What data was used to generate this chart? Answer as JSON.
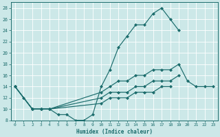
{
  "xlabel": "Humidex (Indice chaleur)",
  "bg_color": "#cce8e8",
  "grid_color": "#ffffff",
  "line_color": "#1a6b6b",
  "xlim": [
    -0.5,
    23.5
  ],
  "ylim": [
    8,
    29
  ],
  "xticks": [
    0,
    1,
    2,
    3,
    4,
    5,
    6,
    7,
    8,
    9,
    10,
    11,
    12,
    13,
    14,
    15,
    16,
    17,
    18,
    19,
    20,
    21,
    22,
    23
  ],
  "yticks": [
    8,
    10,
    12,
    14,
    16,
    18,
    20,
    22,
    24,
    26,
    28
  ],
  "lines": [
    {
      "x": [
        0,
        1,
        2,
        3,
        4,
        5,
        6,
        7,
        8,
        9,
        10,
        11,
        12,
        13,
        14,
        15,
        16,
        17,
        18,
        19
      ],
      "y": [
        14,
        12,
        10,
        10,
        10,
        9,
        9,
        8,
        8,
        9,
        14,
        17,
        21,
        23,
        25,
        25,
        27,
        28,
        26,
        24
      ]
    },
    {
      "x": [
        0,
        2,
        3,
        4,
        10,
        11,
        12,
        13,
        14,
        15,
        16,
        17,
        18,
        19,
        20,
        21,
        22,
        23
      ],
      "y": [
        14,
        10,
        10,
        10,
        13,
        14,
        15,
        15,
        16,
        16,
        17,
        17,
        17,
        18,
        15,
        14,
        14,
        14
      ]
    },
    {
      "x": [
        0,
        2,
        3,
        4,
        10,
        11,
        12,
        13,
        14,
        15,
        16,
        17,
        18,
        19
      ],
      "y": [
        14,
        10,
        10,
        10,
        12,
        13,
        13,
        13,
        14,
        14,
        15,
        15,
        15,
        16
      ]
    },
    {
      "x": [
        0,
        2,
        3,
        4,
        10,
        11,
        12,
        13,
        14,
        15,
        16,
        17,
        18
      ],
      "y": [
        14,
        10,
        10,
        10,
        11,
        12,
        12,
        12,
        13,
        13,
        13,
        14,
        14
      ]
    }
  ]
}
